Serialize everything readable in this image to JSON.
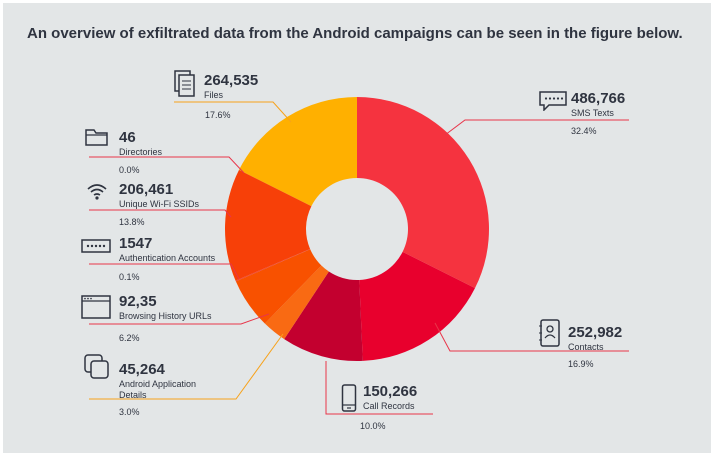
{
  "heading": "An overview of exfiltrated data from the Android campaigns can be seen in the figure below.",
  "colors": {
    "sms": "#f5333f",
    "contacts": "#e8002d",
    "calls": "#c3002f",
    "apps": "#f96a13",
    "browsing": "#f85100",
    "auth": "#f0402c",
    "wifi": "#f74008",
    "dirs": "#f5a100",
    "files": "#ffb000",
    "line_red": "#e8354a",
    "line_orange": "#f7a21b"
  },
  "chart_data": {
    "type": "pie",
    "style": "donut",
    "title": "An overview of exfiltrated data from the Android campaigns can be seen in the figure below.",
    "slices": [
      {
        "key": "sms",
        "label": "SMS Texts",
        "value_text": "486,766",
        "percent": 32.4,
        "percent_text": "32.4%",
        "icon": "sms-icon"
      },
      {
        "key": "contacts",
        "label": "Contacts",
        "value_text": "252,982",
        "percent": 16.9,
        "percent_text": "16.9%",
        "icon": "contacts-icon"
      },
      {
        "key": "calls",
        "label": "Call Records",
        "value_text": "150,266",
        "percent": 10.0,
        "percent_text": "10.0%",
        "icon": "phone-icon"
      },
      {
        "key": "apps",
        "label": "Android Application Details",
        "value_text": "45,264",
        "percent": 3.0,
        "percent_text": "3.0%",
        "icon": "apps-icon"
      },
      {
        "key": "browsing",
        "label": "Browsing History URLs",
        "value_text": "92,35",
        "percent": 6.2,
        "percent_text": "6.2%",
        "icon": "browser-icon"
      },
      {
        "key": "auth",
        "label": "Authentication Accounts",
        "value_text": "1547",
        "percent": 0.1,
        "percent_text": "0.1%",
        "icon": "password-icon"
      },
      {
        "key": "wifi",
        "label": "Unique Wi-Fi SSIDs",
        "value_text": "206,461",
        "percent": 13.8,
        "percent_text": "13.8%",
        "icon": "wifi-icon"
      },
      {
        "key": "dirs",
        "label": "Directories",
        "value_text": "46",
        "percent": 0.0,
        "percent_text": "0.0%",
        "icon": "folder-icon"
      },
      {
        "key": "files",
        "label": "Files",
        "value_text": "264,535",
        "percent": 17.6,
        "percent_text": "17.6%",
        "icon": "files-icon"
      }
    ]
  }
}
